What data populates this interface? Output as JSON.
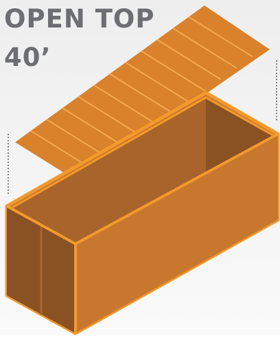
{
  "title": {
    "line1": "OPEN TOP",
    "line2": "40’"
  }
}
